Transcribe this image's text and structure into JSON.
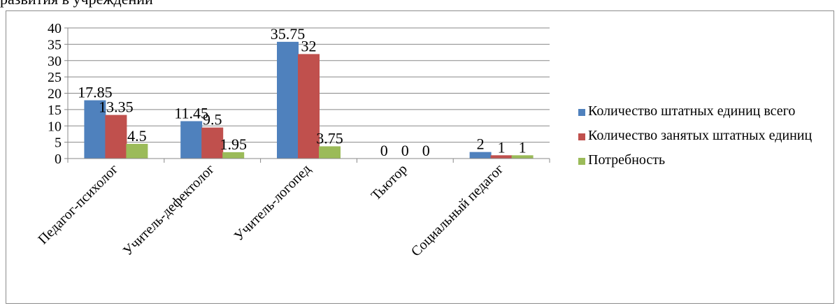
{
  "top_text": "развития в учреждении",
  "colors": {
    "series_1": "#4F81BD",
    "series_2": "#C0504D",
    "series_3": "#9BBB59",
    "grid": "#888888",
    "frame": "#8C8C8C"
  },
  "chart_data": {
    "type": "bar",
    "title": "",
    "xlabel": "",
    "ylabel": "",
    "categories": [
      "Педагог-психолог",
      "Учитель-дефектолог",
      "Учитель-логопед",
      "Тьютор",
      "Социальный педагог"
    ],
    "series": [
      {
        "name": "Количество штатных единиц всего",
        "values": [
          17.85,
          11.45,
          35.75,
          0,
          2
        ]
      },
      {
        "name": "Количество занятых штатных единиц",
        "values": [
          13.35,
          9.5,
          32,
          0,
          1
        ]
      },
      {
        "name": "Потребность",
        "values": [
          4.5,
          1.95,
          3.75,
          0,
          1
        ]
      }
    ],
    "data_labels": [
      [
        "17.85",
        "11.45",
        "35.75",
        "0",
        "2"
      ],
      [
        "13.35",
        "9.5",
        "32",
        "0",
        "1"
      ],
      [
        "4.5",
        "1.95",
        "3.75",
        "0",
        "1"
      ]
    ],
    "ylim": [
      0,
      40
    ],
    "yticks": [
      0,
      5,
      10,
      15,
      20,
      25,
      30,
      35,
      40
    ],
    "grid": true,
    "legend_position": "right"
  }
}
